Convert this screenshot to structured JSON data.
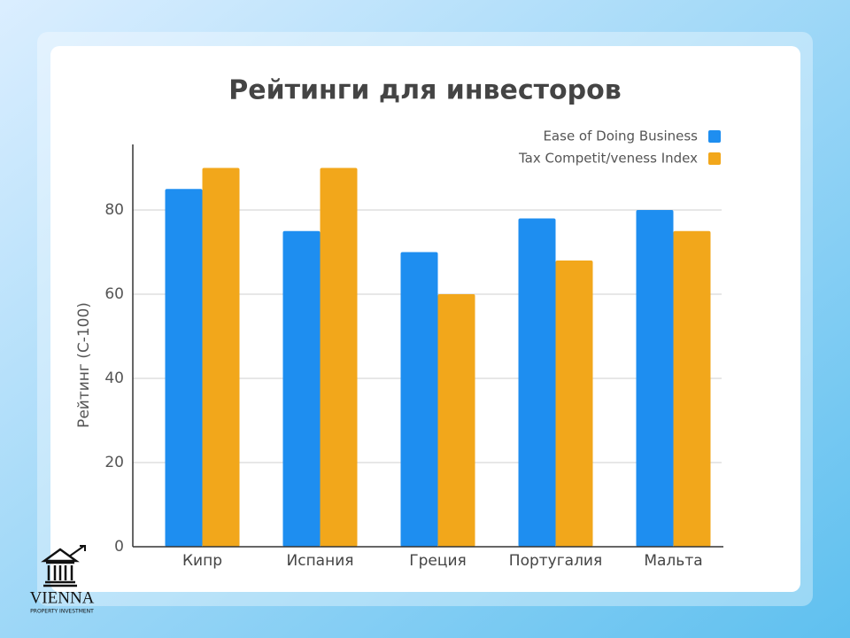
{
  "chart_data": {
    "type": "bar",
    "title": "Рейтинги для инвесторов",
    "y_label": "Рейтинг (С-100)",
    "categories": [
      "Кипр",
      "Испания",
      "Греция",
      "Португалия",
      "Мальта"
    ],
    "series": [
      {
        "name": "Ease of Doing Business",
        "color": "#1e8ef0",
        "values": [
          85,
          75,
          70,
          78,
          80
        ]
      },
      {
        "name": "Tax Competit/veness Index",
        "color": "#f2a71b",
        "values": [
          90,
          90,
          60,
          68,
          75
        ]
      }
    ],
    "ylim": [
      0,
      96
    ],
    "yticks": [
      0,
      20,
      40,
      60,
      80
    ],
    "grid": true,
    "legend": "top-right"
  },
  "logo": {
    "name": "VIENNA",
    "tagline": "PROPERTY INVESTMENT"
  }
}
